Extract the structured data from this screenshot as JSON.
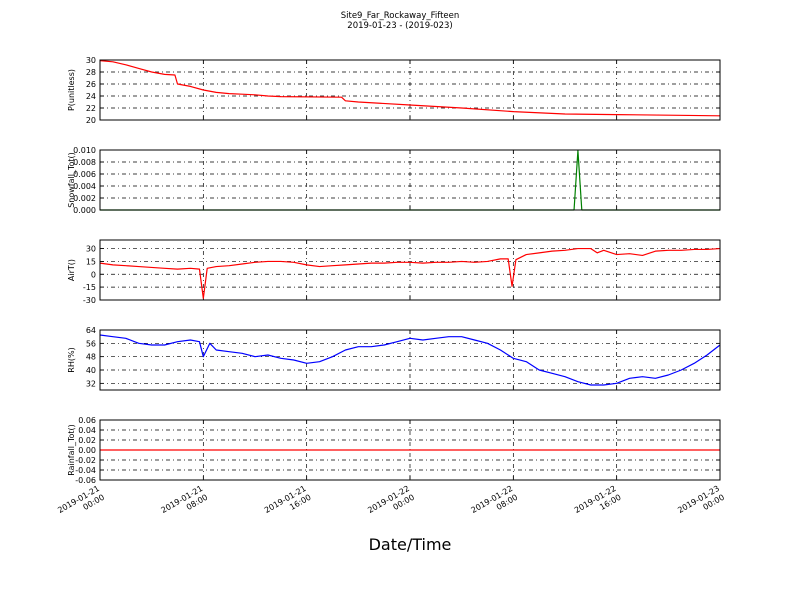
{
  "figure": {
    "title": "Site9_Far_Rockaway_Fifteen",
    "subtitle": "2019-01-23 - (2019-023)",
    "xlabel": "Date/Time"
  },
  "chart_data": [
    {
      "type": "line",
      "ylabel": "P(unitless)",
      "ylim": [
        20,
        30
      ],
      "yticks": [
        "20",
        "22",
        "24",
        "26",
        "28",
        "30"
      ],
      "color": "#ff0000",
      "x": [
        0,
        1,
        2,
        3,
        4,
        5,
        5.8,
        6,
        7,
        8,
        9,
        10,
        11,
        12,
        13,
        14,
        18.7,
        19,
        20,
        24,
        28,
        32,
        36,
        40,
        44,
        48
      ],
      "y": [
        29.9,
        29.7,
        29.2,
        28.6,
        28.0,
        27.6,
        27.5,
        26.0,
        25.6,
        25.0,
        24.6,
        24.4,
        24.3,
        24.2,
        24.0,
        23.9,
        23.8,
        23.2,
        23.0,
        22.5,
        22.0,
        21.4,
        21.0,
        20.9,
        20.8,
        20.7
      ]
    },
    {
      "type": "line",
      "ylabel": "Snowfall_Tot()",
      "ylim": [
        0,
        0.01
      ],
      "yticks": [
        "0.000",
        "0.002",
        "0.004",
        "0.006",
        "0.008",
        "0.010"
      ],
      "color": "#008000",
      "x": [
        0,
        36.7,
        37.0,
        37.3,
        48
      ],
      "y": [
        0,
        0,
        0.0099,
        0,
        0
      ]
    },
    {
      "type": "line",
      "ylabel": "AirT()",
      "ylim": [
        -30,
        40
      ],
      "yticks": [
        "-30",
        "-15",
        "0",
        "15",
        "30"
      ],
      "color": "#ff0000",
      "x": [
        0,
        1,
        2,
        3,
        4,
        5,
        6,
        7,
        7.7,
        8.0,
        8.3,
        9,
        10,
        11,
        12,
        13,
        14,
        15,
        16,
        17,
        18,
        19,
        20,
        21,
        22,
        23,
        24,
        25,
        26,
        27,
        28,
        29,
        30,
        31,
        31.6,
        31.9,
        32.2,
        33,
        34,
        35,
        36,
        37,
        38,
        38.5,
        39,
        40,
        41,
        42,
        43,
        44,
        45,
        46,
        47,
        48
      ],
      "y": [
        13,
        11,
        10,
        9,
        8,
        7,
        6,
        7,
        6,
        -28,
        7,
        9,
        10,
        12,
        14,
        15,
        15,
        14,
        11,
        9,
        10,
        11,
        12,
        13,
        13,
        14,
        14,
        13,
        14,
        14,
        15,
        14,
        15,
        18,
        18,
        -14,
        17,
        23,
        25,
        27,
        28,
        30,
        30,
        25,
        28,
        23,
        24,
        22,
        27,
        28,
        28,
        29,
        29,
        30
      ]
    },
    {
      "type": "line",
      "ylabel": "RH(%)",
      "ylim": [
        28,
        64
      ],
      "yticks": [
        "32",
        "40",
        "48",
        "56",
        "64"
      ],
      "color": "#0000ff",
      "x": [
        0,
        1,
        2,
        3,
        4,
        5,
        6,
        7,
        7.7,
        8,
        8.5,
        9,
        10,
        11,
        12,
        13,
        14,
        15,
        16,
        17,
        18,
        19,
        20,
        21,
        22,
        23,
        24,
        25,
        26,
        27,
        28,
        29,
        30,
        31,
        32,
        33,
        34,
        35,
        36,
        37,
        38,
        39,
        40,
        41,
        42,
        43,
        44,
        45,
        46,
        47,
        48
      ],
      "y": [
        61,
        60,
        59,
        56,
        55,
        55,
        57,
        58,
        57,
        48,
        56,
        52,
        51,
        50,
        48,
        49,
        47,
        46,
        44,
        45,
        48,
        52,
        54,
        54,
        55,
        57,
        59,
        58,
        59,
        60,
        60,
        58,
        56,
        52,
        47,
        45,
        40,
        38,
        36,
        33,
        31,
        31,
        32,
        35,
        36,
        35,
        37,
        40,
        44,
        49,
        55
      ]
    },
    {
      "type": "line",
      "ylabel": "Rainfall_Tot()",
      "ylim": [
        -0.06,
        0.06
      ],
      "yticks": [
        "-0.06",
        "-0.04",
        "-0.02",
        "0.00",
        "0.02",
        "0.04",
        "0.06"
      ],
      "color": "#ff0000",
      "x": [
        0,
        48
      ],
      "y": [
        0,
        0
      ]
    }
  ],
  "xaxis": {
    "range": [
      0,
      48
    ],
    "ticks": [
      {
        "x": 0,
        "line1": "2019-01-21",
        "line2": "00:00"
      },
      {
        "x": 8,
        "line1": "2019-01-21",
        "line2": "08:00"
      },
      {
        "x": 16,
        "line1": "2019-01-21",
        "line2": "16:00"
      },
      {
        "x": 24,
        "line1": "2019-01-22",
        "line2": "00:00"
      },
      {
        "x": 32,
        "line1": "2019-01-22",
        "line2": "08:00"
      },
      {
        "x": 40,
        "line1": "2019-01-22",
        "line2": "16:00"
      },
      {
        "x": 48,
        "line1": "2019-01-23",
        "line2": "00:00"
      }
    ]
  }
}
